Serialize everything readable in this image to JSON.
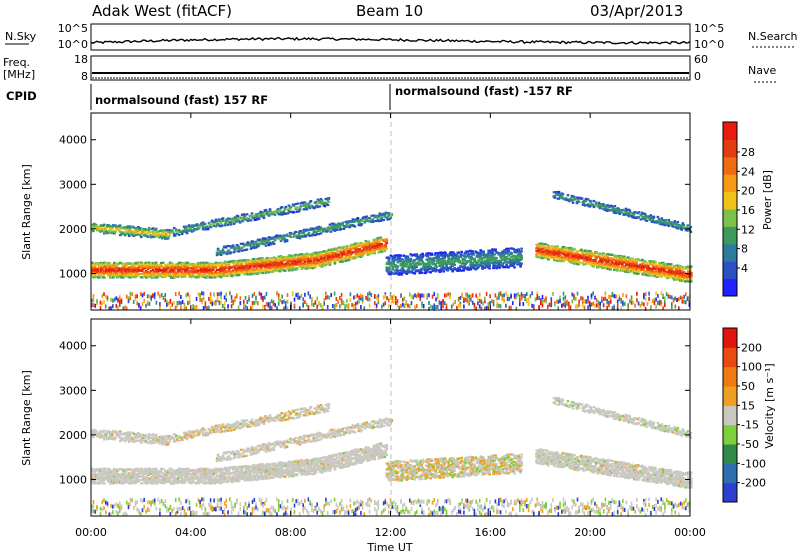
{
  "header": {
    "station": "Adak West (fitACF)",
    "beam": "Beam 10",
    "date": "03/Apr/2013"
  },
  "top_strip": {
    "left_label": "N.Sky",
    "left_ticks": [
      "10^5",
      "10^0"
    ],
    "right_ticks": [
      "10^5",
      "10^0"
    ],
    "right_label": "N.Search"
  },
  "freq_strip": {
    "left_label_1": "Freq.",
    "left_label_2": "[MHz]",
    "left_ticks": [
      "18",
      "8"
    ],
    "right_ticks": [
      "60",
      "0"
    ],
    "right_label": "Nave"
  },
  "cpid": {
    "label": "CPID",
    "segments": [
      "normalsound (fast) 157 RF",
      "normalsound (fast) -157 RF"
    ]
  },
  "chart_data": [
    {
      "type": "heatmap",
      "name": "power",
      "ylabel": "Slant Range [km]",
      "xlabel": "Time UT",
      "ylim": [
        180,
        4600
      ],
      "y_ticks": [
        "1000",
        "2000",
        "3000",
        "4000"
      ],
      "x_ticks": [
        "00:00",
        "04:00",
        "08:00",
        "12:00",
        "16:00",
        "20:00",
        "00:00"
      ],
      "xlim_hours": [
        0,
        24
      ],
      "colorbar": {
        "label": "Power [dB]",
        "ticks": [
          "4",
          "8",
          "12",
          "16",
          "20",
          "24",
          "28"
        ],
        "colors": [
          "#1f22ff",
          "#2b4fc4",
          "#2e7a9e",
          "#3c9a5a",
          "#7cc24a",
          "#f2c21a",
          "#f59a12",
          "#ef6b10",
          "#e53b12",
          "#ea1a0e"
        ]
      }
    },
    {
      "type": "heatmap",
      "name": "velocity",
      "ylabel": "Slant Range [km]",
      "xlabel": "Time UT",
      "ylim": [
        180,
        4600
      ],
      "y_ticks": [
        "1000",
        "2000",
        "3000",
        "4000"
      ],
      "x_ticks": [
        "00:00",
        "04:00",
        "08:00",
        "12:00",
        "16:00",
        "20:00",
        "00:00"
      ],
      "xlim_hours": [
        0,
        24
      ],
      "colorbar": {
        "label": "Velocity [m s⁻¹]",
        "ticks": [
          "200",
          "100",
          "50",
          "15",
          "-15",
          "-50",
          "-100",
          "-200"
        ],
        "colors": [
          "#2b3fd0",
          "#2e6fb0",
          "#2f8a4a",
          "#7fcf3a",
          "#c8c8c0",
          "#f0a020",
          "#f07a10",
          "#e84a10",
          "#e0160e"
        ]
      }
    }
  ],
  "colors": {
    "power_scale": [
      "#1f22ff",
      "#2b4fc4",
      "#2e7a9e",
      "#3c9a5a",
      "#7cc24a",
      "#f2c21a",
      "#f59a12",
      "#ef6b10",
      "#e53b12",
      "#ea1a0e"
    ],
    "velocity_grey": "#c9c8c1",
    "velocity_orange": "#f0a020",
    "velocity_green": "#7fcf3a",
    "velocity_blue": "#2b3fd0"
  }
}
